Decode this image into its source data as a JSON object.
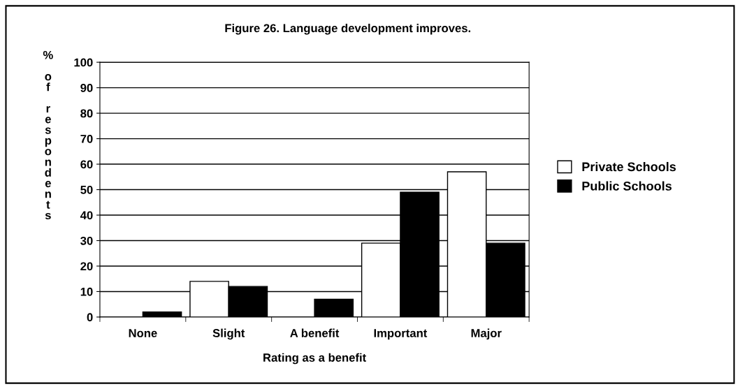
{
  "chart_data": {
    "type": "bar",
    "title": "Figure 26. Language development improves.",
    "xlabel": "Rating as a benefit",
    "ylabel": "% of respondents",
    "categories": [
      "None",
      "Slight",
      "A benefit",
      "Important",
      "Major"
    ],
    "series": [
      {
        "name": "Private Schools",
        "color": "#ffffff",
        "values": [
          0,
          14,
          0,
          29,
          57
        ]
      },
      {
        "name": "Public Schools",
        "color": "#000000",
        "values": [
          2,
          12,
          7,
          49,
          29
        ]
      }
    ],
    "ylim": [
      0,
      100
    ],
    "yticks": [
      0,
      10,
      20,
      30,
      40,
      50,
      60,
      70,
      80,
      90,
      100
    ],
    "grid": "y",
    "legend": "right"
  }
}
